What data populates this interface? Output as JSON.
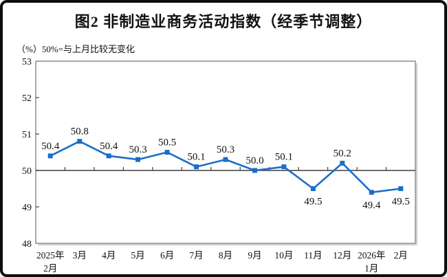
{
  "title": "图2 非制造业商务活动指数（经季节调整）",
  "subtitle": "（%）50%=与上月比较无变化",
  "chart_data": {
    "type": "line",
    "title": "图2 非制造业商务活动指数（经季节调整）",
    "subtitle": "（%）50%=与上月比较无变化",
    "categories": [
      [
        "2025年",
        "2月"
      ],
      [
        "3月"
      ],
      [
        "4月"
      ],
      [
        "5月"
      ],
      [
        "6月"
      ],
      [
        "7月"
      ],
      [
        "8月"
      ],
      [
        "9月"
      ],
      [
        "10月"
      ],
      [
        "11月"
      ],
      [
        "12月"
      ],
      [
        "2026年",
        "1月"
      ],
      [
        "2月"
      ]
    ],
    "series": [
      {
        "name": "非制造业商务活动指数",
        "values": [
          50.4,
          50.8,
          50.4,
          50.3,
          50.5,
          50.1,
          50.3,
          50.0,
          50.1,
          49.5,
          50.2,
          49.4,
          49.5
        ]
      }
    ],
    "ylim": [
      48,
      53
    ],
    "yticks": [
      48,
      49,
      50,
      51,
      52,
      53
    ],
    "reference_line": 50,
    "grid": false,
    "legend_position": "none",
    "label_below_indices": [
      9,
      11,
      12
    ],
    "colors": {
      "line": "#1b6ec8",
      "marker": "#1b6ec8",
      "plot_border": "#8c8c8c",
      "plot_shadow": "#cfcfcf",
      "axis_line": "#3d3d3d",
      "text": "#111111"
    }
  }
}
